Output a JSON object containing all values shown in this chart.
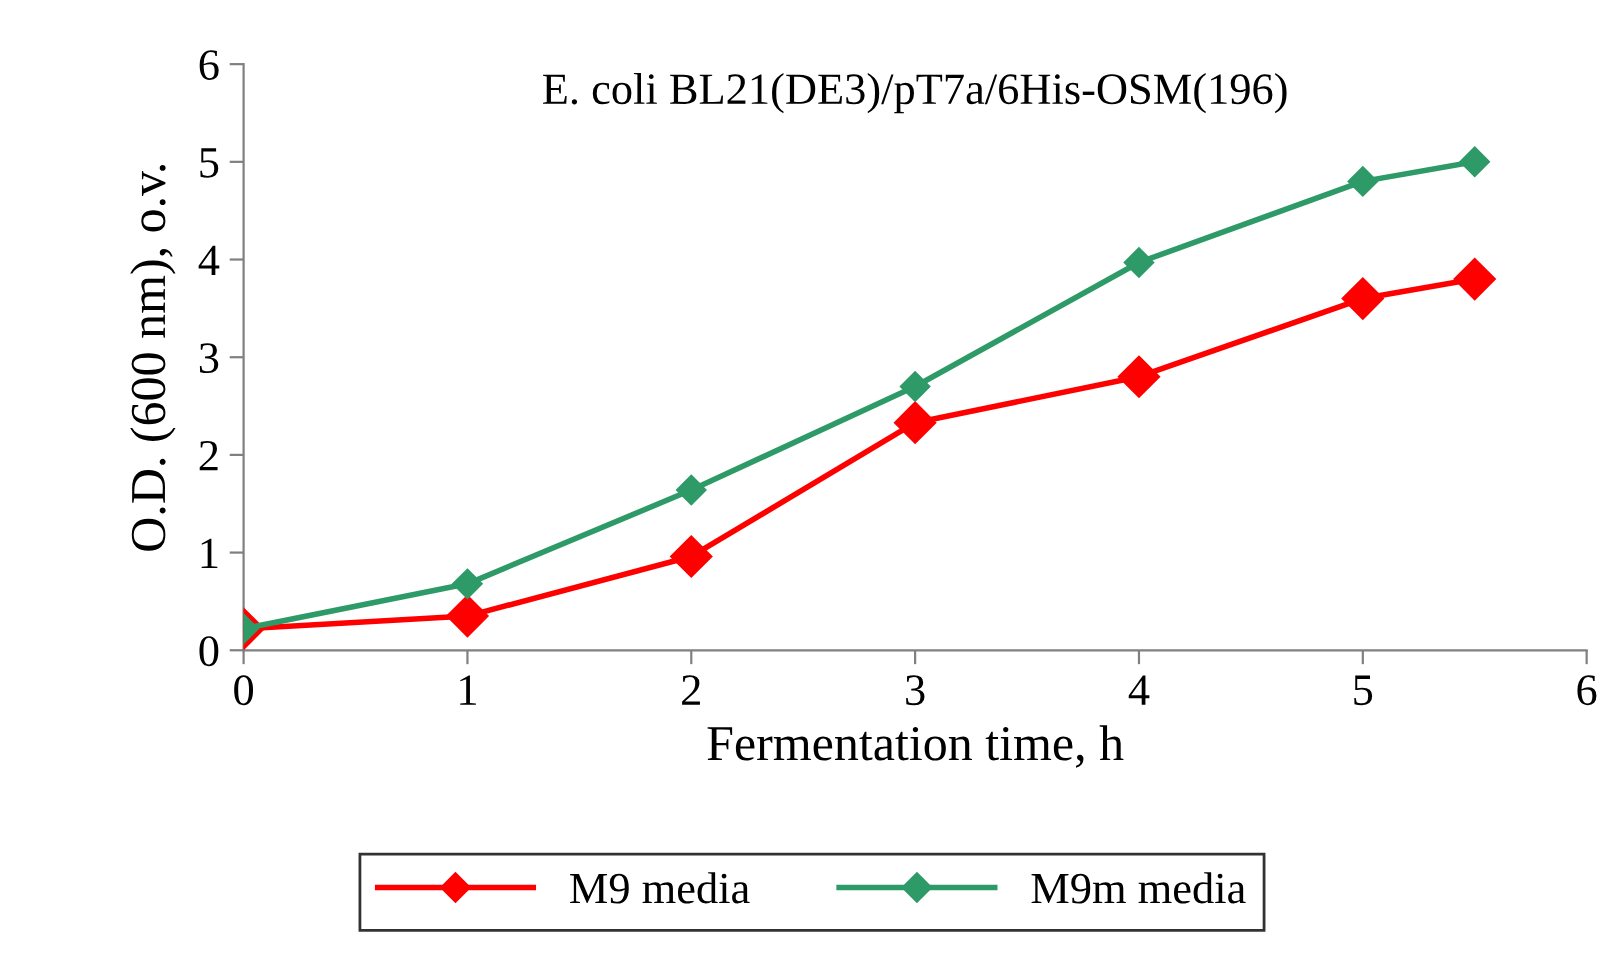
{
  "chart_data": {
    "type": "line",
    "title": "E. coli BL21(DE3)/pT7a/6His-OSM(196)",
    "xlabel": "Fermentation time, h",
    "ylabel": "O.D. (600 nm), o.v.",
    "x": [
      0,
      1,
      2,
      3,
      4,
      5,
      5.5
    ],
    "series": [
      {
        "name": "M9 media",
        "color": "#ff0000",
        "values": [
          0.22,
          0.35,
          0.96,
          2.33,
          2.8,
          3.6,
          3.8
        ]
      },
      {
        "name": "M9m media",
        "color": "#2e9a68",
        "values": [
          0.22,
          0.68,
          1.64,
          2.7,
          3.97,
          4.8,
          5.0
        ]
      }
    ],
    "xlim": [
      0,
      6
    ],
    "xticks": [
      0,
      1,
      2,
      3,
      4,
      5,
      6
    ],
    "ylim": [
      0,
      6
    ],
    "yticks": [
      0,
      1,
      2,
      3,
      4,
      5,
      6
    ],
    "grid": false,
    "legend": "bottom",
    "marker": "diamond",
    "line_style": "solid"
  }
}
